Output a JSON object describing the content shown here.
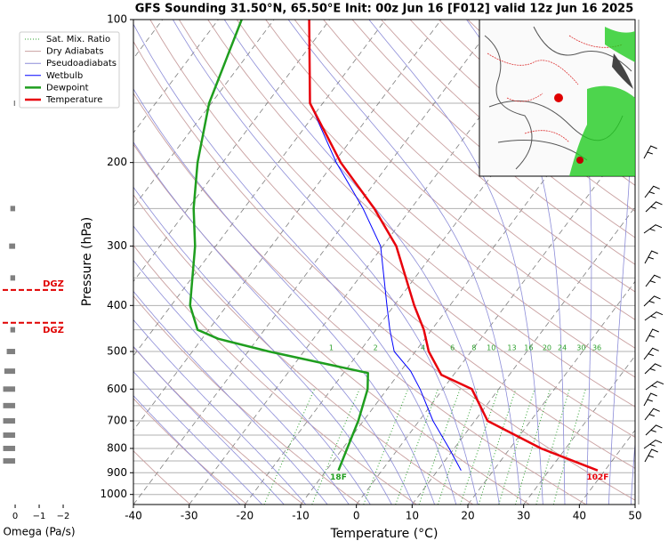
{
  "chart_data": {
    "type": "skewt",
    "title": "GFS Sounding 31.50°N, 65.50°E Init: 00z Jun 16 [F012] valid 12z Jun 16 2025",
    "xlabel": "Temperature (°C)",
    "ylabel": "Pressure (hPa)",
    "xlim": [
      -40,
      50
    ],
    "xticks": [
      -40,
      -30,
      -20,
      -10,
      0,
      10,
      20,
      30,
      40,
      50
    ],
    "ylim": [
      1050,
      100
    ],
    "yticks": [
      100,
      200,
      300,
      400,
      500,
      600,
      700,
      800,
      900,
      1000
    ],
    "y_minor_ticks": [
      150,
      250,
      350,
      450,
      550,
      650,
      750,
      850,
      950
    ],
    "log_y": true,
    "grid": true,
    "legend": "upper left",
    "background_lines": [
      {
        "name": "Sat. Mix. Ratio",
        "color": "#2ca02c",
        "values": [
          1,
          2,
          4,
          6,
          8,
          10,
          13,
          16,
          20,
          24,
          30,
          36
        ]
      },
      {
        "name": "Dry Adiabats",
        "color": "#c9a0a0"
      },
      {
        "name": "Pseudoadiabats",
        "color": "#8c8cd8"
      }
    ],
    "series": [
      {
        "name": "Wetbulb",
        "color": "#0000ff",
        "pressure": [
          890,
          800,
          700,
          600,
          550,
          500,
          450,
          400,
          300,
          250,
          200,
          150
        ],
        "values": [
          14.2,
          9.1,
          2.5,
          -4.1,
          -8.2,
          -13.8,
          -17.5,
          -21.3,
          -30.4,
          -38.6,
          -49.6,
          -62.3
        ]
      },
      {
        "name": "Dewpoint",
        "color": "#1f9e1f",
        "end_label": "18F",
        "pressure": [
          890,
          800,
          700,
          600,
          555,
          500,
          470,
          450,
          400,
          300,
          250,
          200,
          150,
          100
        ],
        "values": [
          -7.8,
          -9.2,
          -10.9,
          -13.5,
          -15.6,
          -36.3,
          -47.1,
          -52,
          -56.6,
          -63.7,
          -69,
          -74.5,
          -80.4,
          -85.8
        ]
      },
      {
        "name": "Temperature",
        "color": "#e8000b",
        "end_label": "102F",
        "pressure": [
          890,
          800,
          700,
          600,
          560,
          500,
          450,
          400,
          300,
          250,
          200,
          150,
          100
        ],
        "values": [
          38.7,
          25.6,
          12.3,
          5.2,
          -2.2,
          -7.6,
          -11.4,
          -16.4,
          -27.6,
          -36.6,
          -48.8,
          -62.3,
          -73.7
        ]
      }
    ],
    "omega": {
      "xlabel": "Omega (Pa/s)",
      "xlim": [
        0.52,
        -2.11
      ],
      "xticks": [
        0,
        {
          "value": -1,
          "label": "−1"
        },
        {
          "value": -2,
          "label": "−2"
        }
      ],
      "color": "#808080",
      "pressure": [
        850,
        800,
        750,
        700,
        650,
        600,
        550,
        500,
        450,
        350,
        300,
        250,
        150
      ],
      "values": [
        0.5,
        0.5,
        0.5,
        0.5,
        0.5,
        0.5,
        0.45,
        0.35,
        0.2,
        0.2,
        0.25,
        0.2,
        0.05
      ],
      "dgz": {
        "label": "DGZ",
        "color": "#e00000",
        "pressure": [
          371,
          435
        ]
      }
    }
  }
}
